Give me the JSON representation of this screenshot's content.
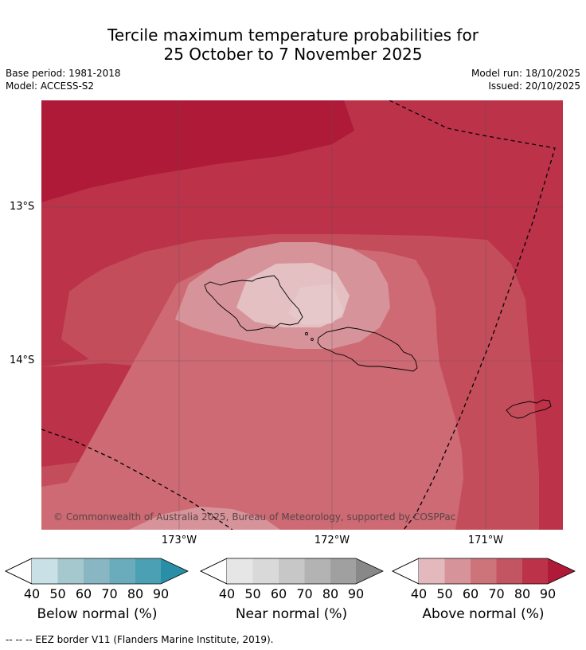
{
  "title": {
    "line1": "Tercile maximum temperature probabilities for",
    "line2": "25 October to 7 November 2025"
  },
  "meta": {
    "base_period": "Base period: 1981-2018",
    "model": "Model: ACCESS-S2",
    "model_run": "Model run: 18/10/2025",
    "issued": "Issued: 20/10/2025"
  },
  "map": {
    "lat_labels": [
      "13°S",
      "14°S"
    ],
    "lon_labels": [
      "173°W",
      "172°W",
      "171°W"
    ],
    "copyright": "© Commonwealth of Australia 2025, Bureau of Meteorology, supported by COSPPac",
    "colors": {
      "c90": "#ae1a37",
      "c80": "#bb3249",
      "c70": "#c44d5c",
      "c60": "#cd6a73",
      "c50": "#d7939a",
      "c40": "#e4c0c3",
      "coast": "#000000",
      "grid": "#555555"
    }
  },
  "colorbars": [
    {
      "name": "below",
      "title": "Below normal (%)",
      "ticks": [
        "40",
        "50",
        "60",
        "70",
        "80",
        "90"
      ],
      "colors": [
        "#c9e1e6",
        "#a5c7ce",
        "#88b6c2",
        "#6aacbc",
        "#4ba0b3",
        "#2a8fa6"
      ]
    },
    {
      "name": "near",
      "title": "Near normal (%)",
      "ticks": [
        "40",
        "50",
        "60",
        "70",
        "80",
        "90"
      ],
      "colors": [
        "#e6e6e6",
        "#d9d9d9",
        "#c7c7c7",
        "#b3b3b3",
        "#a0a0a0",
        "#888888"
      ]
    },
    {
      "name": "above",
      "title": "Above normal (%)",
      "ticks": [
        "40",
        "50",
        "60",
        "70",
        "80",
        "90"
      ],
      "colors": [
        "#e4b9bd",
        "#d6939a",
        "#cd737a",
        "#c35563",
        "#bb3249",
        "#ae1a37"
      ]
    }
  ],
  "footnote": "--  --  -- EEZ border V11 (Flanders Marine Institute, 2019)."
}
